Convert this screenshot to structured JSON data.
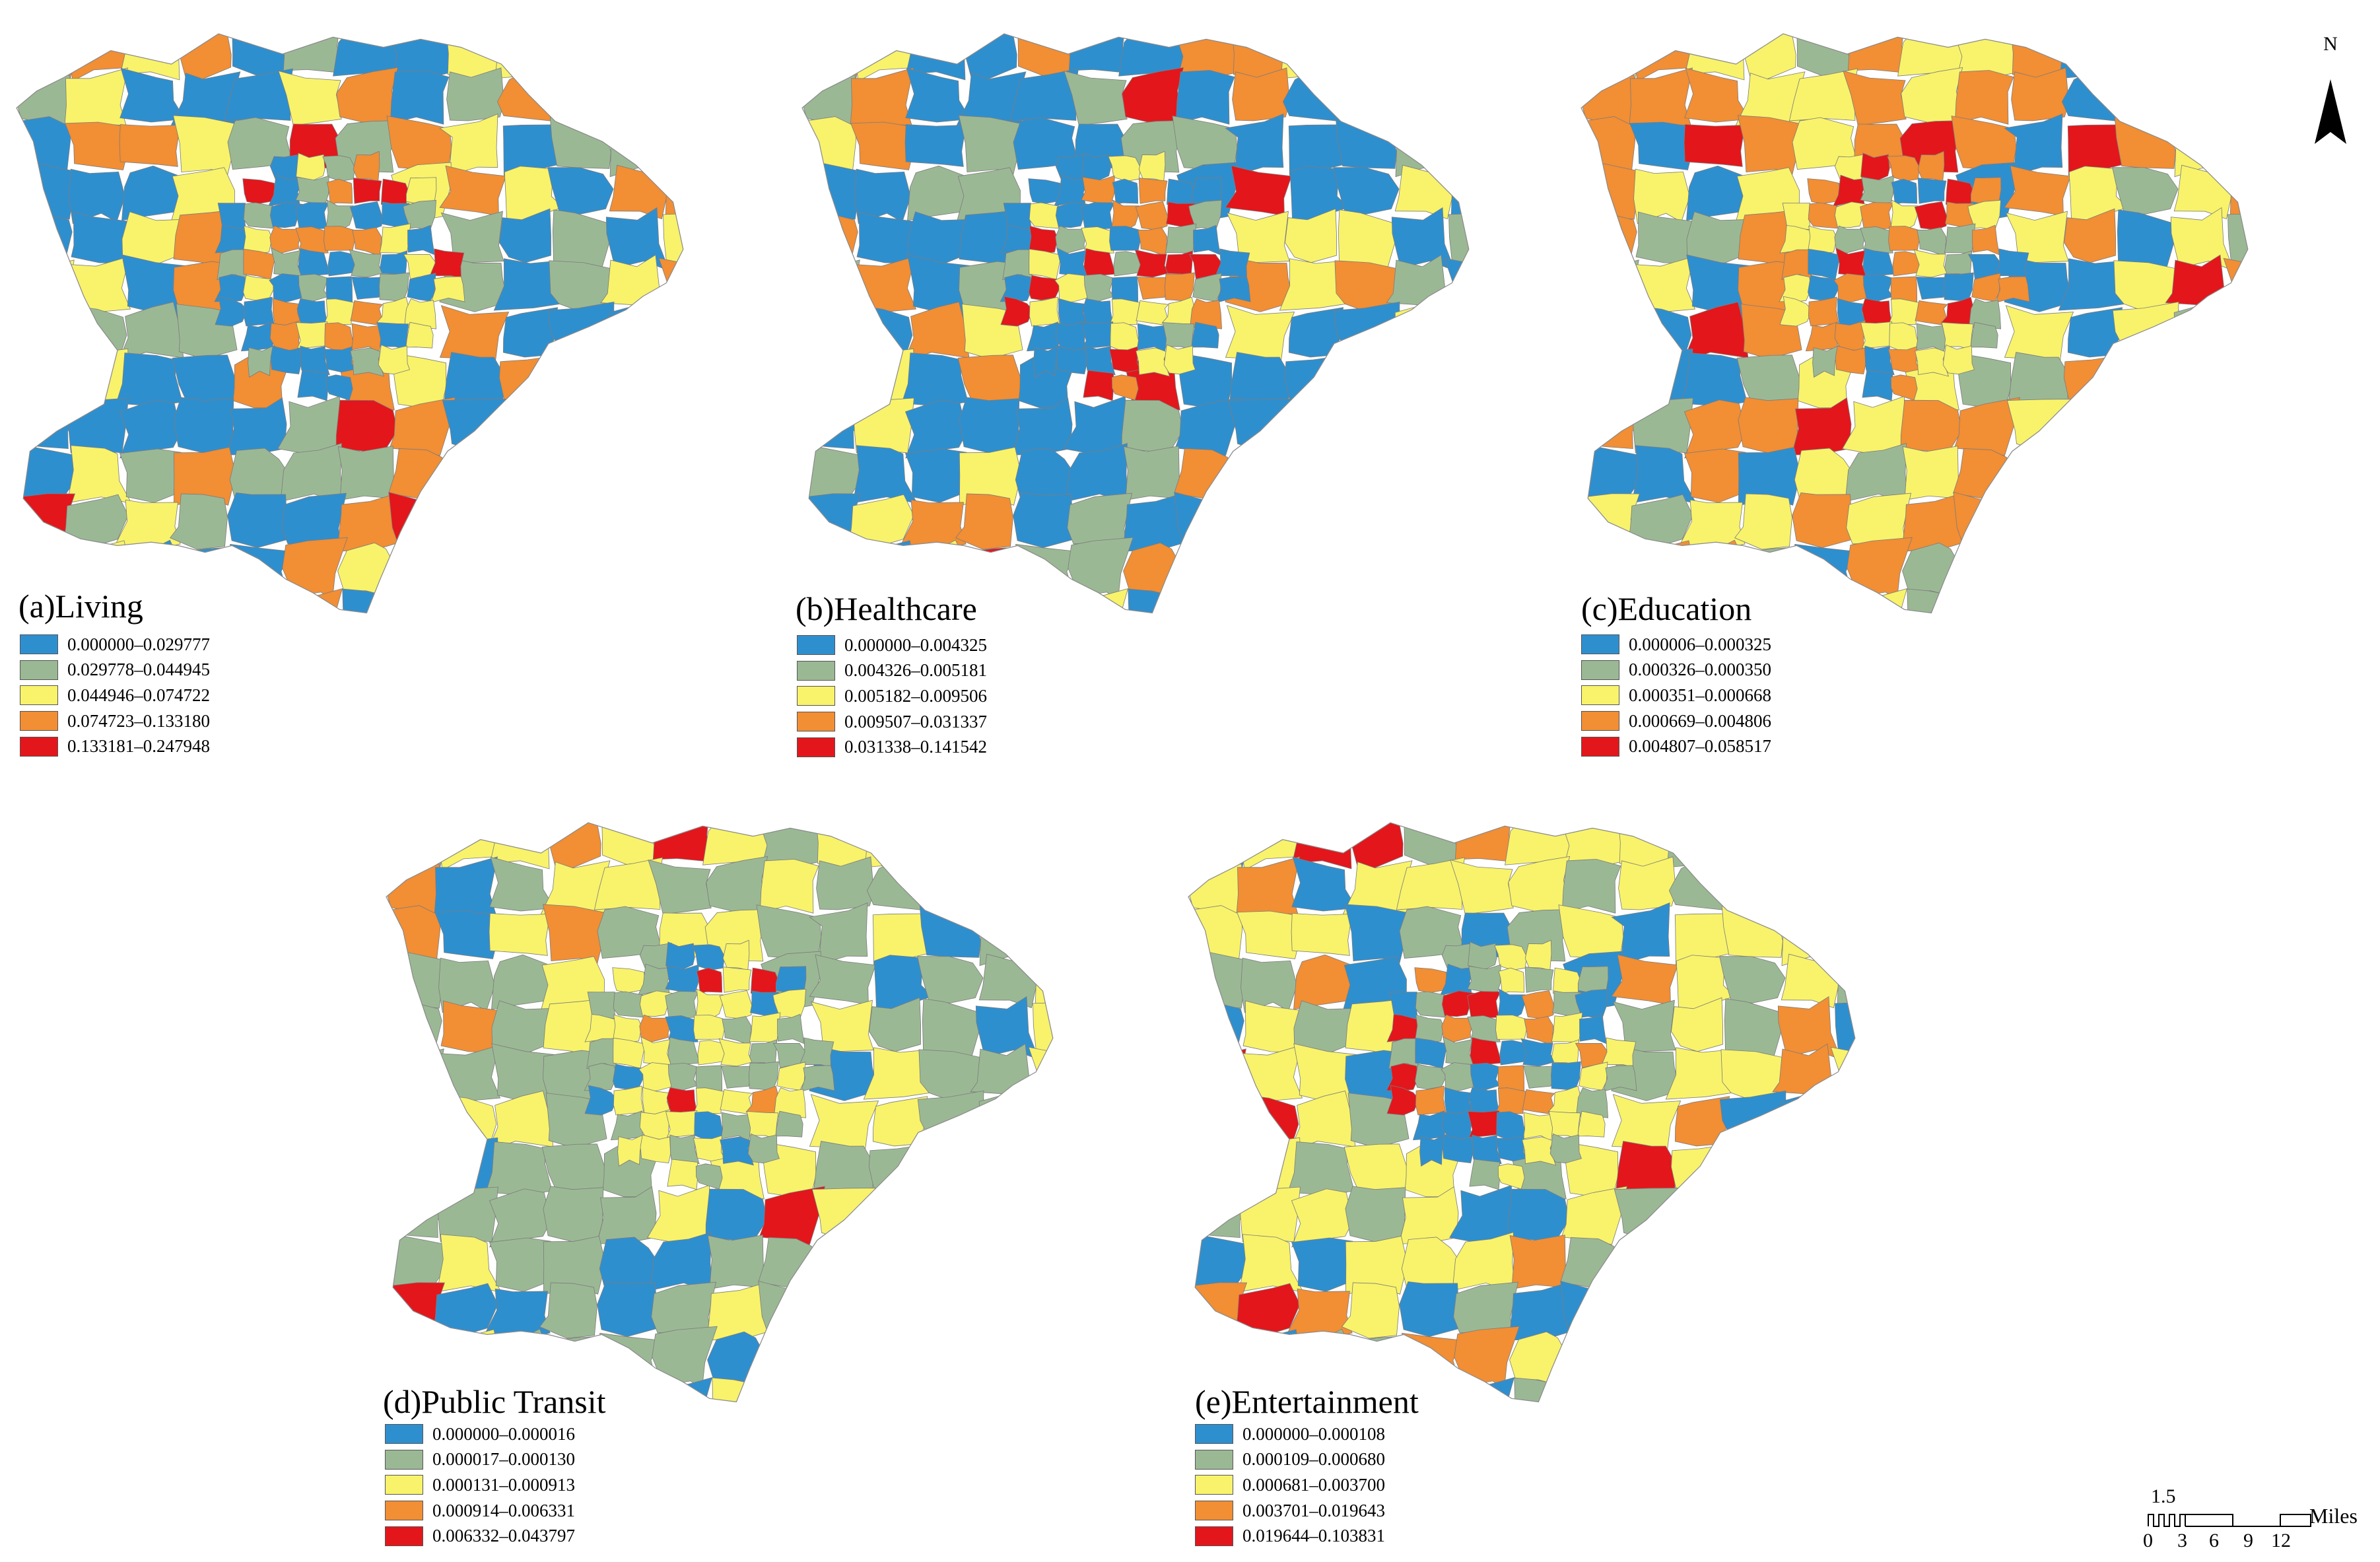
{
  "colors": {
    "blue": "#2e8fcf",
    "green": "#9bb894",
    "yellow": "#f8f36a",
    "orange": "#f28e34",
    "red": "#e3161b",
    "boundary": "#7c7c7c"
  },
  "maps": [
    {
      "title": "(a)Living",
      "legend": [
        {
          "label": "0.000000–0.029777",
          "color": "#2e8fcf"
        },
        {
          "label": "0.029778–0.044945",
          "color": "#9bb894"
        },
        {
          "label": "0.044946–0.074722",
          "color": "#f8f36a"
        },
        {
          "label": "0.074723–0.133180",
          "color": "#f28e34"
        },
        {
          "label": "0.133181–0.247948",
          "color": "#e3161b"
        }
      ]
    },
    {
      "title": "(b)Healthcare",
      "legend": [
        {
          "label": "0.000000–0.004325",
          "color": "#2e8fcf"
        },
        {
          "label": "0.004326–0.005181",
          "color": "#9bb894"
        },
        {
          "label": "0.005182–0.009506",
          "color": "#f8f36a"
        },
        {
          "label": "0.009507–0.031337",
          "color": "#f28e34"
        },
        {
          "label": "0.031338–0.141542",
          "color": "#e3161b"
        }
      ]
    },
    {
      "title": "(c)Education",
      "legend": [
        {
          "label": "0.000006–0.000325",
          "color": "#2e8fcf"
        },
        {
          "label": "0.000326–0.000350",
          "color": "#9bb894"
        },
        {
          "label": "0.000351–0.000668",
          "color": "#f8f36a"
        },
        {
          "label": "0.000669–0.004806",
          "color": "#f28e34"
        },
        {
          "label": "0.004807–0.058517",
          "color": "#e3161b"
        }
      ]
    },
    {
      "title": "(d)Public Transit",
      "legend": [
        {
          "label": "0.000000–0.000016",
          "color": "#2e8fcf"
        },
        {
          "label": "0.000017–0.000130",
          "color": "#9bb894"
        },
        {
          "label": "0.000131–0.000913",
          "color": "#f8f36a"
        },
        {
          "label": "0.000914–0.006331",
          "color": "#f28e34"
        },
        {
          "label": "0.006332–0.043797",
          "color": "#e3161b"
        }
      ]
    },
    {
      "title": "(e)Entertainment",
      "legend": [
        {
          "label": "0.000000–0.000108",
          "color": "#2e8fcf"
        },
        {
          "label": "0.000109–0.000680",
          "color": "#9bb894"
        },
        {
          "label": "0.000681–0.003700",
          "color": "#f8f36a"
        },
        {
          "label": "0.003701–0.019643",
          "color": "#f28e34"
        },
        {
          "label": "0.019644–0.103831",
          "color": "#e3161b"
        }
      ]
    }
  ],
  "north_arrow": {
    "letter": "N",
    "icon": "north-arrow-icon"
  },
  "scale_bar": {
    "top_label": "1.5",
    "unit": "Miles",
    "ticks": [
      "0",
      "3",
      "6",
      "9",
      "12"
    ]
  }
}
